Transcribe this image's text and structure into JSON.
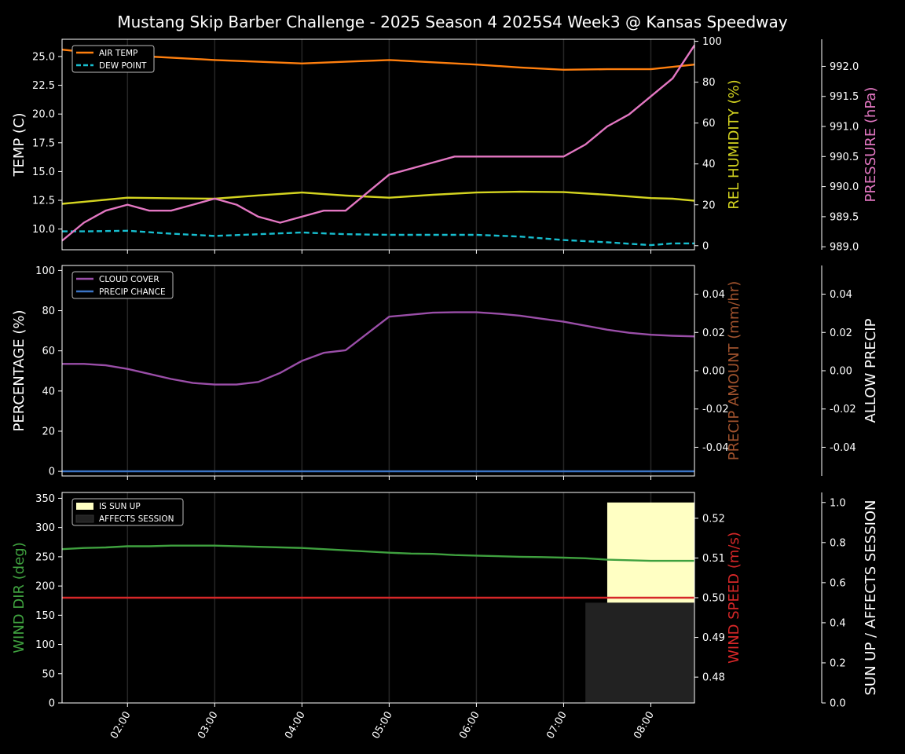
{
  "title": "Mustang Skip Barber Challenge - 2025 Season 4 2025S4 Week3 @ Kansas Speedway",
  "x_axis": {
    "range": [
      "01:15",
      "08:30"
    ],
    "ticks": [
      "02:00",
      "03:00",
      "04:00",
      "05:00",
      "06:00",
      "07:00",
      "08:00"
    ]
  },
  "colors": {
    "background": "#000000",
    "foreground": "#ffffff",
    "air_temp": "#ff7f0e",
    "dew_point": "#17becf",
    "humidity": "#d4d420",
    "pressure": "#e377c2",
    "cloud_cover": "#9a4ea8",
    "precip_chance": "#3b74c5",
    "precip_amount_label": "#a0522d",
    "wind_dir": "#3fa13f",
    "wind_speed": "#d62728",
    "sun_up": "#ffffc3",
    "affects_session": "#222222"
  },
  "chart_data": [
    {
      "type": "line",
      "name": "weather-temperature",
      "title": "Mustang Skip Barber Challenge - 2025 Season 4 2025S4 Week3 @ Kansas Speedway",
      "xlim": [
        "01:15",
        "08:30"
      ],
      "y_left": {
        "label": "TEMP (C)",
        "lim": [
          8.2,
          26.5
        ],
        "ticks": [
          "10.0",
          "12.5",
          "15.0",
          "17.5",
          "20.0",
          "22.5",
          "25.0"
        ]
      },
      "y_right_1": {
        "label": "REL HUMIDITY (%)",
        "lim": [
          -2,
          101
        ],
        "ticks": [
          "0",
          "20",
          "40",
          "60",
          "80",
          "100"
        ]
      },
      "y_right_2": {
        "label": "PRESSURE (hPa)",
        "lim": [
          988.95,
          992.45
        ],
        "ticks": [
          "989.0",
          "989.5",
          "990.0",
          "990.5",
          "991.0",
          "991.5",
          "992.0"
        ]
      },
      "legend": {
        "placement": "upper-left",
        "entries": [
          "AIR TEMP",
          "DEW POINT"
        ]
      },
      "grid": "vertical",
      "series": [
        {
          "name": "AIR TEMP",
          "axis": "left",
          "style": "solid",
          "x": [
            "01:15",
            "01:30",
            "02:00",
            "02:30",
            "03:00",
            "03:30",
            "04:00",
            "04:30",
            "05:00",
            "05:30",
            "06:00",
            "06:30",
            "07:00",
            "07:30",
            "08:00",
            "08:30"
          ],
          "values": [
            25.6,
            25.4,
            25.1,
            24.9,
            24.7,
            24.55,
            24.4,
            24.55,
            24.7,
            24.5,
            24.3,
            24.05,
            23.85,
            23.9,
            23.9,
            24.3
          ]
        },
        {
          "name": "DEW POINT",
          "axis": "left",
          "style": "dashed",
          "x": [
            "01:15",
            "01:30",
            "02:00",
            "02:30",
            "03:00",
            "03:30",
            "04:00",
            "04:30",
            "05:00",
            "05:30",
            "06:00",
            "06:30",
            "07:00",
            "07:30",
            "08:00",
            "08:15",
            "08:30"
          ],
          "values": [
            9.8,
            9.8,
            9.85,
            9.6,
            9.4,
            9.55,
            9.7,
            9.55,
            9.5,
            9.5,
            9.5,
            9.35,
            9.05,
            8.85,
            8.6,
            8.75,
            8.75
          ]
        },
        {
          "name": "REL HUMIDITY",
          "axis": "right_1",
          "style": "solid",
          "x": [
            "01:15",
            "01:30",
            "02:00",
            "02:30",
            "03:00",
            "03:30",
            "04:00",
            "04:30",
            "05:00",
            "05:30",
            "06:00",
            "06:30",
            "07:00",
            "07:30",
            "08:00",
            "08:15",
            "08:30"
          ],
          "values": [
            20.5,
            21.5,
            23.5,
            23.2,
            23,
            24.6,
            26,
            24.5,
            23.5,
            24.9,
            26,
            26.4,
            26.2,
            24.9,
            23.3,
            23,
            22
          ]
        },
        {
          "name": "PRESSURE",
          "axis": "right_2",
          "style": "solid",
          "x": [
            "01:15",
            "01:30",
            "01:45",
            "02:00",
            "02:15",
            "02:30",
            "02:45",
            "03:00",
            "03:15",
            "03:30",
            "03:45",
            "04:00",
            "04:15",
            "04:30",
            "05:00",
            "05:30",
            "05:45",
            "06:00",
            "06:30",
            "07:00",
            "07:15",
            "07:30",
            "07:45",
            "08:00",
            "08:15",
            "08:30"
          ],
          "values": [
            989.1,
            989.4,
            989.6,
            989.7,
            989.6,
            989.6,
            989.7,
            989.8,
            989.7,
            989.5,
            989.4,
            989.5,
            989.6,
            989.6,
            990.2,
            990.4,
            990.5,
            990.5,
            990.5,
            990.5,
            990.7,
            991.0,
            991.2,
            991.5,
            991.8,
            992.35
          ]
        }
      ]
    },
    {
      "type": "line",
      "name": "weather-clouds-precip",
      "xlim": [
        "01:15",
        "08:30"
      ],
      "y_left": {
        "label": "PERCENTAGE (%)",
        "lim": [
          -2.3,
          102.5
        ],
        "ticks": [
          "0",
          "20",
          "40",
          "60",
          "80",
          "100"
        ]
      },
      "y_right_1": {
        "label": "PRECIP AMOUNT (mm/hr)",
        "lim": [
          -0.055,
          0.055
        ],
        "ticks": [
          "-0.04",
          "-0.02",
          "0.00",
          "0.02",
          "0.04"
        ]
      },
      "y_right_2": {
        "label": "ALLOW PRECIP",
        "lim": [
          -0.055,
          0.055
        ],
        "ticks": [
          "-0.04",
          "-0.02",
          "0.00",
          "0.02",
          "0.04"
        ]
      },
      "legend": {
        "placement": "upper-left",
        "entries": [
          "CLOUD COVER",
          "PRECIP CHANCE"
        ]
      },
      "grid": "vertical",
      "series": [
        {
          "name": "CLOUD COVER",
          "axis": "left",
          "x": [
            "01:15",
            "01:30",
            "01:45",
            "02:00",
            "02:15",
            "02:30",
            "02:45",
            "03:00",
            "03:15",
            "03:30",
            "03:45",
            "04:00",
            "04:15",
            "04:30",
            "05:00",
            "05:30",
            "05:45",
            "06:00",
            "06:15",
            "06:30",
            "06:45",
            "07:00",
            "07:15",
            "07:30",
            "07:45",
            "08:00",
            "08:15",
            "08:30"
          ],
          "values": [
            53.5,
            53.5,
            52.8,
            51,
            48.5,
            46,
            44,
            43.2,
            43.2,
            44.5,
            49,
            55,
            59,
            60.3,
            77,
            79,
            79.2,
            79.2,
            78.5,
            77.5,
            76,
            74.5,
            72.5,
            70.5,
            69,
            68,
            67.5,
            67.2
          ]
        },
        {
          "name": "PRECIP CHANCE",
          "axis": "left",
          "x": [
            "01:15",
            "08:30"
          ],
          "values": [
            0,
            0
          ]
        }
      ]
    },
    {
      "type": "line",
      "name": "weather-wind-sun",
      "xlim": [
        "01:15",
        "08:30"
      ],
      "y_left": {
        "label": "WIND DIR (deg)",
        "lim": [
          0,
          360
        ],
        "ticks": [
          "0",
          "50",
          "100",
          "150",
          "200",
          "250",
          "300",
          "350"
        ]
      },
      "y_right_1": {
        "label": "WIND SPEED (m/s)",
        "lim": [
          0.4735,
          0.5265
        ],
        "ticks": [
          "0.48",
          "0.49",
          "0.50",
          "0.51",
          "0.52"
        ]
      },
      "y_right_2": {
        "label": "SUN UP / AFFECTS SESSION",
        "lim": [
          0,
          1.05
        ],
        "ticks": [
          "0.0",
          "0.2",
          "0.4",
          "0.6",
          "0.8",
          "1.0"
        ]
      },
      "legend": {
        "placement": "upper-left",
        "entries": [
          "IS SUN UP",
          "AFFECTS SESSION"
        ]
      },
      "grid": "vertical",
      "series": [
        {
          "name": "WIND DIR",
          "axis": "left",
          "x": [
            "01:15",
            "01:30",
            "01:45",
            "02:00",
            "02:15",
            "02:30",
            "03:00",
            "03:30",
            "04:00",
            "04:30",
            "05:00",
            "05:15",
            "05:30",
            "05:45",
            "06:00",
            "06:30",
            "06:45",
            "07:00",
            "07:15",
            "07:30",
            "08:00",
            "08:30"
          ],
          "values": [
            263,
            265,
            266,
            268,
            268,
            269,
            269,
            267,
            265,
            261,
            257,
            255.5,
            255,
            253,
            252,
            250,
            249.5,
            248.5,
            247.5,
            245,
            243,
            243
          ]
        },
        {
          "name": "WIND SPEED",
          "axis": "right_1",
          "x": [
            "01:15",
            "08:30"
          ],
          "values": [
            0.5,
            0.5
          ]
        }
      ],
      "bars": [
        {
          "name": "IS SUN UP",
          "axis": "right_2",
          "x_start": "07:30",
          "x_end": "08:30",
          "bottom": 0.5,
          "top": 1.0
        },
        {
          "name": "AFFECTS SESSION",
          "axis": "right_2",
          "x_start": "07:15",
          "x_end": "08:30",
          "bottom": 0,
          "top": 0.5
        }
      ]
    }
  ]
}
